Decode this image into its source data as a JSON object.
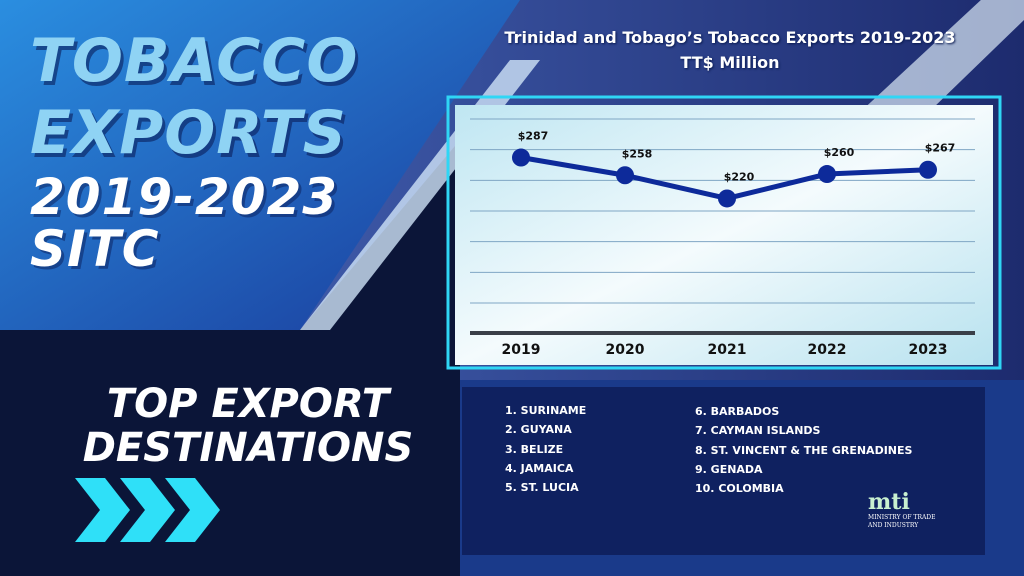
{
  "hero": {
    "line1": "TOBACCO",
    "line2": "EXPORTS",
    "line3": "2019-2023",
    "line4": "SITC"
  },
  "destinations": {
    "heading_line1": "TOP EXPORT",
    "heading_line2": "DESTINATIONS",
    "col1": [
      "1. SURINAME",
      "2. GUYANA",
      "3. BELIZE",
      "4. JAMAICA",
      "5. ST. LUCIA"
    ],
    "col2": [
      "6. BARBADOS",
      "7. CAYMAN  ISLANDS",
      "8. ST. VINCENT & THE GRENADINES",
      "9. GENADA",
      "10. COLOMBIA"
    ]
  },
  "logo": {
    "name": "mti",
    "line1": "MINISTRY OF TRADE",
    "line2": "AND INDUSTRY"
  },
  "colors": {
    "line": "#0d2a9a",
    "accent": "#2fd6f5",
    "panel": "#0f2160"
  },
  "chart_data": {
    "type": "line",
    "title": "Trinidad  and  Tobago’s Tobacco Exports 2019-2023",
    "subtitle": "TT$ Million",
    "categories": [
      "2019",
      "2020",
      "2021",
      "2022",
      "2023"
    ],
    "values": [
      287,
      258,
      220,
      260,
      267
    ],
    "labels": [
      "$287",
      "$258",
      "$220",
      "$260",
      "$267"
    ],
    "ylim": [
      0,
      350
    ],
    "grid": true,
    "legend": "none"
  }
}
